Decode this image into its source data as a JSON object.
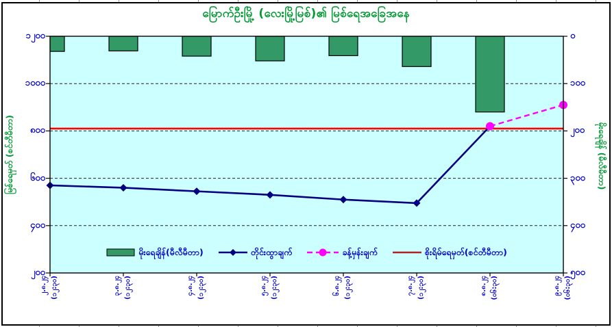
{
  "title": {
    "text": "မြောက်ဦးမြို့ (လေးမြို့မြစ်)၏ မြစ်ရေအခြေအနေ"
  },
  "colors": {
    "plot_bg": "#CCFFFF",
    "bar_fill": "#339966",
    "bar_border": "#000000",
    "measured": "#000080",
    "forecast": "#FF00FF",
    "danger": "#FF0000",
    "danger_legend": "#B22222",
    "axis_text": "#0000CC",
    "title_text": "#009933",
    "grid": "#222222"
  },
  "chart_data": {
    "type": "bar+line combo, dual axis",
    "categories": [
      {
        "date": "၂.၈.၂၄",
        "time": "(၁၂:၃၀)"
      },
      {
        "date": "၃.၈.၂၄",
        "time": "(၁၂:၃၀)"
      },
      {
        "date": "၄.၈.၂၄",
        "time": "(၁၂:၃၀)"
      },
      {
        "date": "၅.၈.၂၄",
        "time": "(၁၂:၃၀)"
      },
      {
        "date": "၆.၈.၂၄",
        "time": "(၁၂:၃၀)"
      },
      {
        "date": "၇.၈.၂၄",
        "time": "(၁၂:၃၀)"
      },
      {
        "date": "၈.၈.၂၄",
        "time": "(၀၆:၃၀)"
      },
      {
        "date": "၉.၈.၂၄",
        "time": "(၀၆:၃၀)"
      }
    ],
    "series": [
      {
        "name": "မိုးရေချိန်(မီလီမီတာ)",
        "type": "bar",
        "axis": "right",
        "color_key": "bar_fill",
        "values": [
          32,
          31,
          42,
          52,
          41,
          64,
          160,
          null
        ]
      },
      {
        "name": "တိုင်းထွာချက်",
        "type": "line",
        "marker": "diamond",
        "axis": "left",
        "color_key": "measured",
        "values": [
          570,
          560,
          545,
          530,
          510,
          495,
          820,
          null
        ]
      },
      {
        "name": "ခန့်မှန်းချက်",
        "type": "dashed-line",
        "marker": "circle",
        "axis": "left",
        "color_key": "forecast",
        "values": [
          null,
          null,
          null,
          null,
          null,
          null,
          820,
          910
        ]
      },
      {
        "name": "စိုးရိမ်ရေမှတ်(စင်တီမီတာ)",
        "type": "hline",
        "axis": "left",
        "color_key": "danger",
        "value": 810
      }
    ],
    "left_axis": {
      "title": "မြစ်ရေမှတ် (စင်တီမီတာ)",
      "min": 200,
      "max": 1200,
      "step": 200,
      "tick_labels": [
        "၁၂၀၀",
        "၁၀၀၀",
        "၈၀၀",
        "၆၀၀",
        "၄၀၀",
        "၂၀၀"
      ],
      "tick_values": [
        1200,
        1000,
        800,
        600,
        400,
        200
      ]
    },
    "right_axis": {
      "title": "မိုးရေချိန် (မီလီမီတာ)",
      "min": 0,
      "max": 500,
      "step": 100,
      "inverted": true,
      "tick_labels": [
        "၀",
        "၁၀၀",
        "၂၀၀",
        "၃၀၀",
        "၄၀၀",
        "၅၀၀"
      ],
      "tick_values": [
        0,
        100,
        200,
        300,
        400,
        500
      ]
    },
    "grid": "horizontal dashed at every 200 cm / 100 mm",
    "legend_position": "inside plot, bottom center"
  },
  "legend": {
    "items": [
      {
        "swatch": "bar",
        "color_key": "bar_fill",
        "label": "မိုးရေချိန်(မီလီမီတာ)"
      },
      {
        "swatch": "line-diamond",
        "color_key": "measured",
        "label": "တိုင်းထွာချက်"
      },
      {
        "swatch": "dash-circle",
        "color_key": "forecast",
        "label": "ခန့်မှန်းချက်"
      },
      {
        "swatch": "line",
        "color_key": "danger_legend",
        "label": "စိုးရိမ်ရေမှတ်(စင်တီမီတာ)"
      }
    ]
  }
}
